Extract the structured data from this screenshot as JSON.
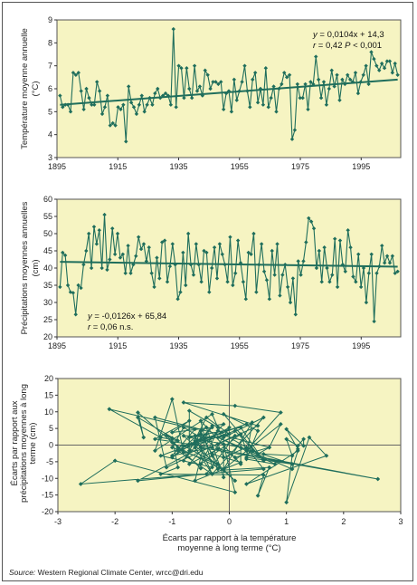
{
  "source": {
    "prefix": "Source:",
    "text": " Western Regional Climate Center, wrcc@dri.edu"
  },
  "colors": {
    "panel_bg": "#f6f4c2",
    "series": "#1f6e5c",
    "axis": "#666666"
  },
  "chart_data": [
    {
      "type": "line",
      "ylabel": "Température moyenne annuelle (°C)",
      "xticks": [
        "1895",
        "1915",
        "1935",
        "1955",
        "1975",
        "1995"
      ],
      "yticks": [
        "3",
        "4",
        "5",
        "6",
        "7",
        "8",
        "9"
      ],
      "xlim": [
        1895,
        2008
      ],
      "ylim": [
        3,
        9
      ],
      "annotation": {
        "line1": "y = 0,0104x + 14,3",
        "line2": "r = 0,42 P < 0,001"
      },
      "trend": {
        "x": [
          1896,
          2007
        ],
        "y": [
          5.3,
          6.4
        ]
      },
      "x_start": 1896,
      "values": [
        5.7,
        5.2,
        5.3,
        5.3,
        5.0,
        6.7,
        6.6,
        6.7,
        5.9,
        5.1,
        6.0,
        5.6,
        5.3,
        5.3,
        6.3,
        5.9,
        4.9,
        5.2,
        5.7,
        4.4,
        4.5,
        4.4,
        5.2,
        5.1,
        5.3,
        3.7,
        6.1,
        5.4,
        5.2,
        4.9,
        5.3,
        5.7,
        5.0,
        5.3,
        5.6,
        5.3,
        5.8,
        6.0,
        5.6,
        5.7,
        5.8,
        5.7,
        5.3,
        8.6,
        5.2,
        7.0,
        6.9,
        5.6,
        6.9,
        6.0,
        5.6,
        7.0,
        5.9,
        6.1,
        5.7,
        6.8,
        6.6,
        6.0,
        6.3,
        6.3,
        6.2,
        6.3,
        5.1,
        5.8,
        5.9,
        5.0,
        6.4,
        5.5,
        5.9,
        6.3,
        7.0,
        5.9,
        5.2,
        6.4,
        6.7,
        5.4,
        6.0,
        5.3,
        6.9,
        5.2,
        5.6,
        6.1,
        5.0,
        6.0,
        6.2,
        6.7,
        6.5,
        6.6,
        3.8,
        4.2,
        6.2,
        5.6,
        5.6,
        6.2,
        5.1,
        6.3,
        6.2,
        7.4,
        6.4,
        5.6,
        6.3,
        5.3,
        6.0,
        6.8,
        6.1,
        6.6,
        5.5,
        6.4,
        6.2,
        6.6,
        6.4,
        6.3,
        6.7,
        5.8,
        6.3,
        6.6,
        7.0,
        6.2,
        7.6,
        7.3,
        7.0,
        6.8,
        7.1,
        6.9,
        7.2,
        7.2,
        6.7,
        7.1,
        6.6
      ]
    },
    {
      "type": "line",
      "ylabel": "Précipitations moyennes annuelles (cm)",
      "xticks": [
        "1895",
        "1915",
        "1935",
        "1955",
        "1975",
        "1995"
      ],
      "yticks": [
        "20",
        "25",
        "30",
        "35",
        "40",
        "45",
        "50",
        "55",
        "60"
      ],
      "xlim": [
        1895,
        2008
      ],
      "ylim": [
        20,
        60
      ],
      "annotation": {
        "line1": "y = -0,0126x + 65,84",
        "line2": "r = 0,06 n.s."
      },
      "trend": {
        "x": [
          1896,
          2007
        ],
        "y": [
          41.8,
          40.4
        ]
      },
      "x_start": 1896,
      "values": [
        34.5,
        44.5,
        43.7,
        35.0,
        33.0,
        32.8,
        26.5,
        35.0,
        34.2,
        41.0,
        45.0,
        50.0,
        40.0,
        52.0,
        47.0,
        51.0,
        40.0,
        55.5,
        39.5,
        42.5,
        51.5,
        44.0,
        50.0,
        43.0,
        44.0,
        38.5,
        46.5,
        38.5,
        41.0,
        43.5,
        49.0,
        45.5,
        47.0,
        42.0,
        46.0,
        38.5,
        34.5,
        43.0,
        37.0,
        47.5,
        48.0,
        36.0,
        40.5,
        47.0,
        41.0,
        31.0,
        33.0,
        44.5,
        35.0,
        50.0,
        41.0,
        38.0,
        47.0,
        41.0,
        36.0,
        45.0,
        44.5,
        33.0,
        40.0,
        46.0,
        37.0,
        47.0,
        44.0,
        41.0,
        36.0,
        49.0,
        35.0,
        38.5,
        48.0,
        41.5,
        36.0,
        31.0,
        44.5,
        44.0,
        50.0,
        33.0,
        41.0,
        47.0,
        39.0,
        36.5,
        31.0,
        45.0,
        38.0,
        47.0,
        32.0,
        38.0,
        41.0,
        34.5,
        30.0,
        37.0,
        26.5,
        42.0,
        38.0,
        42.0,
        47.5,
        54.5,
        53.5,
        51.5,
        40.0,
        45.0,
        36.0,
        46.0,
        40.0,
        36.0,
        38.0,
        48.5,
        34.5,
        48.0,
        41.0,
        39.0,
        51.0,
        46.0,
        37.5,
        36.0,
        44.0,
        34.5,
        40.0,
        30.0,
        38.5,
        44.0,
        24.5,
        38.5,
        40.5,
        46.5,
        41.5,
        43.5,
        41.5,
        43.5,
        38.5,
        39.0
      ]
    },
    {
      "type": "scatter",
      "xlabel": "Écarts par rapport à la température moyenne à long terme (°C)",
      "ylabel": "Écarts par rapport aux précipitations moyennes à long terme (cm)",
      "xticks": [
        "-3",
        "-2",
        "-1",
        "0",
        "1",
        "2",
        "3"
      ],
      "yticks": [
        "20",
        "15",
        "10",
        "5",
        "0",
        "-5",
        "-10",
        "-15",
        "-20"
      ],
      "xlim": [
        -3,
        3
      ],
      "ylim": [
        -20,
        20
      ],
      "connected": true,
      "points": [
        [
          -0.5,
          -7.0
        ],
        [
          -1.1,
          2.9
        ],
        [
          -1.0,
          2.1
        ],
        [
          -0.9,
          -6.7
        ],
        [
          -1.2,
          -8.7
        ],
        [
          0.6,
          -9.0
        ],
        [
          0.5,
          -15.2
        ],
        [
          0.7,
          -6.7
        ],
        [
          -0.1,
          -7.5
        ],
        [
          -0.9,
          -0.7
        ],
        [
          0.0,
          3.3
        ],
        [
          -0.4,
          8.3
        ],
        [
          -0.7,
          -1.7
        ],
        [
          -0.7,
          10.3
        ],
        [
          -0.2,
          5.3
        ],
        [
          -0.3,
          9.3
        ],
        [
          -1.3,
          -1.7
        ],
        [
          -1.0,
          13.8
        ],
        [
          -0.8,
          -2.2
        ],
        [
          -1.0,
          0.8
        ],
        [
          -1.6,
          9.8
        ],
        [
          -1.5,
          2.3
        ],
        [
          -1.6,
          8.3
        ],
        [
          -0.9,
          1.3
        ],
        [
          -1.2,
          2.3
        ],
        [
          -2.1,
          10.8
        ],
        [
          -0.6,
          4.8
        ],
        [
          -1.0,
          -3.2
        ],
        [
          -0.3,
          -0.7
        ],
        [
          -1.3,
          1.8
        ],
        [
          -0.7,
          7.3
        ],
        [
          -1.0,
          3.8
        ],
        [
          -0.3,
          5.3
        ],
        [
          -0.6,
          0.3
        ],
        [
          -0.5,
          4.3
        ],
        [
          -0.3,
          -3.2
        ],
        [
          -0.2,
          -7.2
        ],
        [
          -0.6,
          1.3
        ],
        [
          -0.8,
          -4.7
        ],
        [
          -0.3,
          5.8
        ],
        [
          -0.1,
          6.3
        ],
        [
          -0.7,
          -5.7
        ],
        [
          -0.2,
          -1.2
        ],
        [
          2.6,
          -10.2
        ],
        [
          -0.5,
          -0.7
        ],
        [
          -1.6,
          -10.7
        ],
        [
          -0.4,
          -8.7
        ],
        [
          0.1,
          2.8
        ],
        [
          -1.1,
          -6.7
        ],
        [
          -1.3,
          8.3
        ],
        [
          0.7,
          -0.7
        ],
        [
          0.1,
          -3.7
        ],
        [
          -0.8,
          5.3
        ],
        [
          -1.0,
          -0.7
        ],
        [
          -0.2,
          -5.7
        ],
        [
          -0.5,
          3.3
        ],
        [
          -0.6,
          2.8
        ],
        [
          -0.3,
          -8.7
        ],
        [
          -0.9,
          -1.7
        ],
        [
          0.1,
          4.3
        ],
        [
          0.6,
          -4.7
        ],
        [
          0.2,
          5.3
        ],
        [
          -0.7,
          2.3
        ],
        [
          0.2,
          -0.7
        ],
        [
          0.2,
          -5.7
        ],
        [
          -0.5,
          7.3
        ],
        [
          -0.3,
          -6.7
        ],
        [
          -1.2,
          -3.2
        ],
        [
          0.3,
          6.3
        ],
        [
          -0.8,
          -0.2
        ],
        [
          -0.2,
          -5.7
        ],
        [
          0.1,
          -10.7
        ],
        [
          -0.8,
          2.8
        ],
        [
          -0.1,
          2.3
        ],
        [
          0.6,
          8.3
        ],
        [
          -0.3,
          -8.7
        ],
        [
          -0.6,
          -0.7
        ],
        [
          0.0,
          5.3
        ],
        [
          -0.3,
          -2.7
        ],
        [
          0.2,
          -5.2
        ],
        [
          -0.6,
          -10.7
        ],
        [
          -0.4,
          3.3
        ],
        [
          -1.0,
          -3.7
        ],
        [
          -0.4,
          5.3
        ],
        [
          -0.1,
          -9.7
        ],
        [
          -0.1,
          -3.7
        ],
        [
          0.3,
          -0.7
        ],
        [
          0.6,
          -7.2
        ],
        [
          -2.6,
          -11.7
        ],
        [
          -2.0,
          -4.7
        ],
        [
          0.1,
          -14.2
        ],
        [
          -0.1,
          0.3
        ],
        [
          -0.1,
          -3.7
        ],
        [
          -0.2,
          0.3
        ],
        [
          0.5,
          5.8
        ],
        [
          -0.8,
          12.8
        ],
        [
          0.1,
          11.8
        ],
        [
          0.9,
          9.8
        ],
        [
          0.3,
          -1.7
        ],
        [
          0.2,
          3.3
        ],
        [
          -0.5,
          -5.7
        ],
        [
          -0.2,
          4.3
        ],
        [
          0.4,
          -1.7
        ],
        [
          1.1,
          -5.7
        ],
        [
          0.3,
          -3.7
        ],
        [
          0.4,
          6.8
        ],
        [
          -0.1,
          -7.2
        ],
        [
          0.9,
          6.3
        ],
        [
          0.7,
          -0.7
        ],
        [
          0.5,
          -2.7
        ],
        [
          -0.1,
          9.3
        ],
        [
          0.5,
          4.3
        ],
        [
          0.3,
          -4.2
        ],
        [
          0.8,
          -5.7
        ],
        [
          -0.2,
          2.3
        ],
        [
          1.1,
          -7.2
        ],
        [
          1.2,
          -1.7
        ],
        [
          0.3,
          -11.7
        ],
        [
          1.7,
          -3.2
        ],
        [
          1.4,
          2.3
        ],
        [
          1.0,
          -17.2
        ],
        [
          1.1,
          -3.2
        ],
        [
          1.2,
          -1.2
        ],
        [
          1.0,
          4.8
        ],
        [
          1.3,
          -0.2
        ],
        [
          1.3,
          1.8
        ],
        [
          1.2,
          -0.2
        ],
        [
          1.0,
          1.8
        ],
        [
          1.1,
          -3.2
        ],
        [
          0.6,
          -2.7
        ]
      ]
    }
  ]
}
